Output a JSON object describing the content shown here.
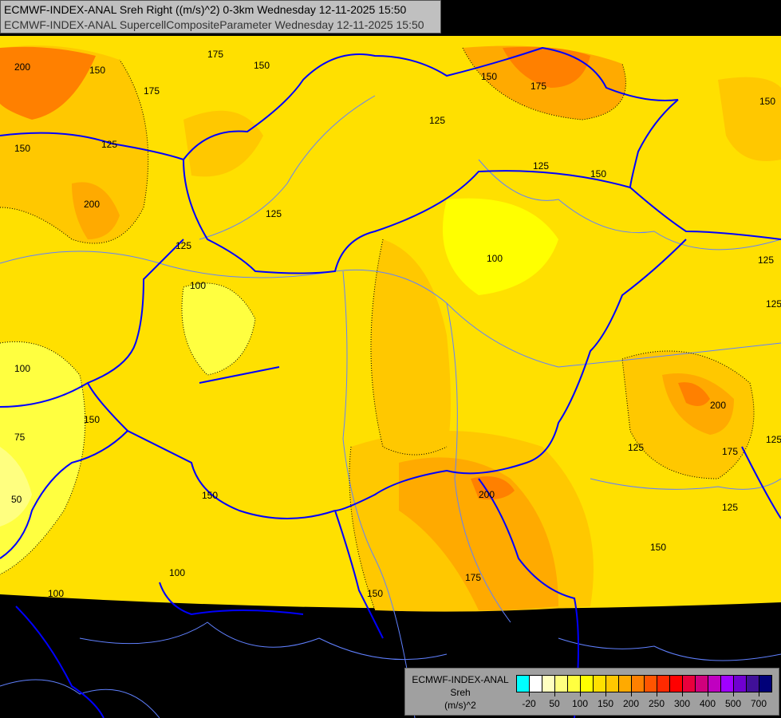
{
  "header": {
    "line1": "ECMWF-INDEX-ANAL Sreh Right ((m/s)^2) 0-3km Wednesday 12-11-2025 15:50",
    "line2": "ECMWF-INDEX-ANAL SupercellCompositeParameter Wednesday 12-11-2025 15:50"
  },
  "legend": {
    "model": "ECMWF-INDEX-ANAL",
    "parameter": "Sreh",
    "unit": "(m/s)^2",
    "colors": [
      "#00ffff",
      "#ffffff",
      "#ffffc0",
      "#ffff80",
      "#ffff40",
      "#ffff00",
      "#ffe000",
      "#ffc800",
      "#ffaa00",
      "#ff8000",
      "#ff5500",
      "#ff2a00",
      "#ff0000",
      "#e8003c",
      "#d0007c",
      "#c000c0",
      "#a000ff",
      "#7000d0",
      "#401098",
      "#000078"
    ],
    "ticks": [
      "-20",
      "50",
      "100",
      "150",
      "200",
      "250",
      "300",
      "400",
      "500",
      "700"
    ]
  },
  "map": {
    "colors": {
      "background": "#000000",
      "border": "#0000ff",
      "river": "#6080ff"
    },
    "contour_labels": [
      "200",
      "150",
      "175",
      "150",
      "175",
      "150",
      "175",
      "125",
      "125",
      "150",
      "125",
      "150",
      "150",
      "200",
      "125",
      "125",
      "100",
      "100",
      "125",
      "125",
      "100",
      "150",
      "200",
      "175",
      "125",
      "125",
      "125",
      "75",
      "50",
      "150",
      "100",
      "100",
      "150",
      "200",
      "175",
      "150"
    ]
  }
}
